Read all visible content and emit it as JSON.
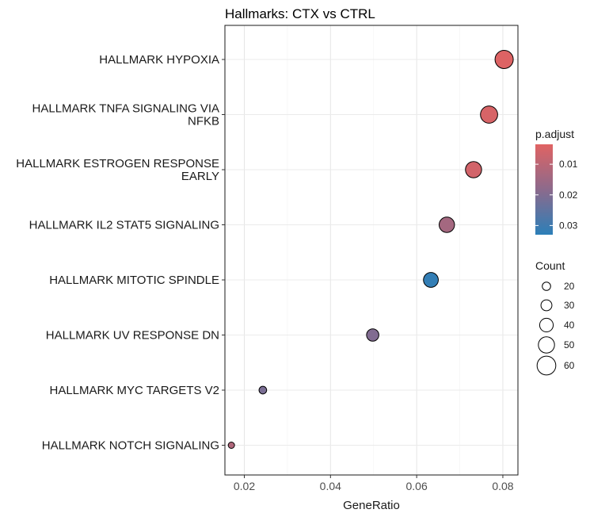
{
  "chart_data": {
    "type": "scatter",
    "title": "Hallmarks: CTX vs CTRL",
    "xlabel": "GeneRatio",
    "ylabel": "",
    "xlim": [
      0.0155,
      0.0835
    ],
    "xticks": [
      0.02,
      0.04,
      0.06,
      0.08
    ],
    "xtick_labels": [
      "0.02",
      "0.04",
      "0.06",
      "0.08"
    ],
    "grid": true,
    "legend_placement": "right",
    "categories": [
      "HALLMARK HYPOXIA",
      "HALLMARK TNFA SIGNALING VIA NFKB",
      "HALLMARK ESTROGEN RESPONSE EARLY",
      "HALLMARK IL2 STAT5 SIGNALING",
      "HALLMARK MITOTIC SPINDLE",
      "HALLMARK UV RESPONSE DN",
      "HALLMARK MYC TARGETS V2",
      "HALLMARK NOTCH SIGNALING"
    ],
    "category_lines": [
      [
        "HALLMARK HYPOXIA"
      ],
      [
        "HALLMARK TNFA SIGNALING VIA",
        "NFKB"
      ],
      [
        "HALLMARK ESTROGEN RESPONSE",
        "EARLY"
      ],
      [
        "HALLMARK IL2 STAT5 SIGNALING"
      ],
      [
        "HALLMARK MITOTIC SPINDLE"
      ],
      [
        "HALLMARK UV RESPONSE DN"
      ],
      [
        "HALLMARK MYC TARGETS V2"
      ],
      [
        "HALLMARK NOTCH SIGNALING"
      ]
    ],
    "points": [
      {
        "category": "HALLMARK HYPOXIA",
        "gene_ratio": 0.0803,
        "count": 58,
        "p_adjust": 0.004
      },
      {
        "category": "HALLMARK TNFA SIGNALING VIA NFKB",
        "gene_ratio": 0.0768,
        "count": 54,
        "p_adjust": 0.005
      },
      {
        "category": "HALLMARK ESTROGEN RESPONSE EARLY",
        "gene_ratio": 0.0732,
        "count": 50,
        "p_adjust": 0.006
      },
      {
        "category": "HALLMARK IL2 STAT5 SIGNALING",
        "gene_ratio": 0.067,
        "count": 47,
        "p_adjust": 0.014
      },
      {
        "category": "HALLMARK MITOTIC SPINDLE",
        "gene_ratio": 0.0633,
        "count": 45,
        "p_adjust": 0.032
      },
      {
        "category": "HALLMARK UV RESPONSE DN",
        "gene_ratio": 0.0498,
        "count": 35,
        "p_adjust": 0.02
      },
      {
        "category": "HALLMARK MYC TARGETS V2",
        "gene_ratio": 0.0243,
        "count": 17,
        "p_adjust": 0.021
      },
      {
        "category": "HALLMARK NOTCH SIGNALING",
        "gene_ratio": 0.017,
        "count": 12,
        "p_adjust": 0.012
      }
    ],
    "color_legend": {
      "title": "p.adjust",
      "ticks": [
        0.01,
        0.02,
        0.03
      ],
      "tick_labels": [
        "0.01",
        "0.02",
        "0.03"
      ],
      "range": [
        0.0035,
        0.033
      ],
      "low_color": "#e06363",
      "high_color": "#2c7fb8"
    },
    "size_legend": {
      "title": "Count",
      "values": [
        20,
        30,
        40,
        50,
        60
      ],
      "labels": [
        "20",
        "30",
        "40",
        "50",
        "60"
      ]
    }
  }
}
